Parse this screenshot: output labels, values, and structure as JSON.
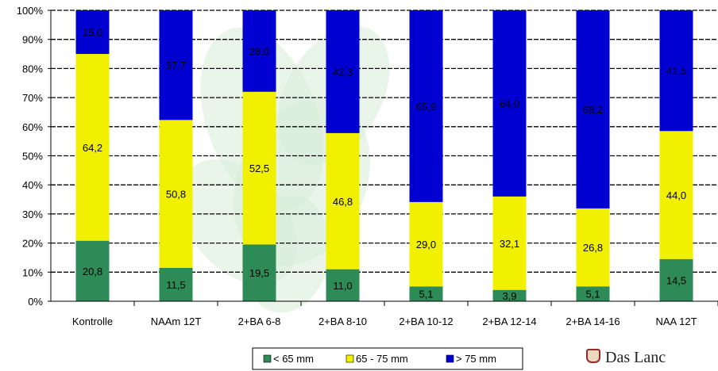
{
  "chart_data": {
    "type": "bar",
    "stacked": true,
    "percent": true,
    "categories": [
      "Kontrolle",
      "NAAm 12T",
      "2+BA 6-8",
      "2+BA 8-10",
      "2+BA 10-12",
      "2+BA 12-14",
      "2+BA 14-16",
      "NAA 12T"
    ],
    "series": [
      {
        "name": "< 65 mm",
        "color": "#2e8b57",
        "values": [
          20.8,
          11.5,
          19.5,
          11.0,
          5.1,
          3.9,
          5.1,
          14.5
        ],
        "labels": [
          "20,8",
          "11,5",
          "19,5",
          "11,0",
          "5,1",
          "3,9",
          "5,1",
          "14,5"
        ]
      },
      {
        "name": "65 - 75 mm",
        "color": "#f0f000",
        "values": [
          64.2,
          50.8,
          52.5,
          46.8,
          29.0,
          32.1,
          26.8,
          44.0
        ],
        "labels": [
          "64,2",
          "50,8",
          "52,5",
          "46,8",
          "29,0",
          "32,1",
          "26,8",
          "44,0"
        ]
      },
      {
        "name": "> 75 mm",
        "color": "#0000d0",
        "values": [
          15.0,
          37.7,
          28.0,
          42.3,
          65.9,
          64.0,
          68.2,
          41.5
        ],
        "labels": [
          "15,0",
          "37,7",
          "28,0",
          "42,3",
          "65,9",
          "64,0",
          "68,2",
          "41,5"
        ]
      }
    ],
    "yticks": [
      "0%",
      "10%",
      "20%",
      "30%",
      "40%",
      "50%",
      "60%",
      "70%",
      "80%",
      "90%",
      "100%"
    ],
    "ylim": [
      0,
      100
    ],
    "grid": true,
    "legend": "bottom-center"
  },
  "watermark": {
    "text": "Das Lanc"
  }
}
